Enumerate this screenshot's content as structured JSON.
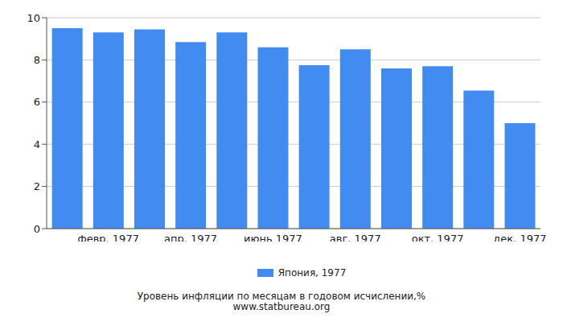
{
  "chart_data": {
    "type": "bar",
    "title": "Уровень инфляции по месяцам в годовом исчислении,%",
    "subtitle": "www.statbureau.org",
    "categories": [
      null,
      "февр. 1977",
      null,
      "апр. 1977",
      null,
      "июнь 1977",
      null,
      "авг. 1977",
      null,
      "окт. 1977",
      null,
      "дек. 1977"
    ],
    "series": [
      {
        "name": "Япония, 1977",
        "color": "#428bf0",
        "values": [
          9.5,
          9.3,
          9.45,
          8.85,
          9.3,
          8.6,
          7.75,
          8.5,
          7.6,
          7.7,
          6.55,
          5.0
        ]
      }
    ],
    "ylim": [
      0,
      10
    ],
    "yticks": [
      0,
      2,
      4,
      6,
      8,
      10
    ],
    "grid": true,
    "legend": "bottom"
  }
}
